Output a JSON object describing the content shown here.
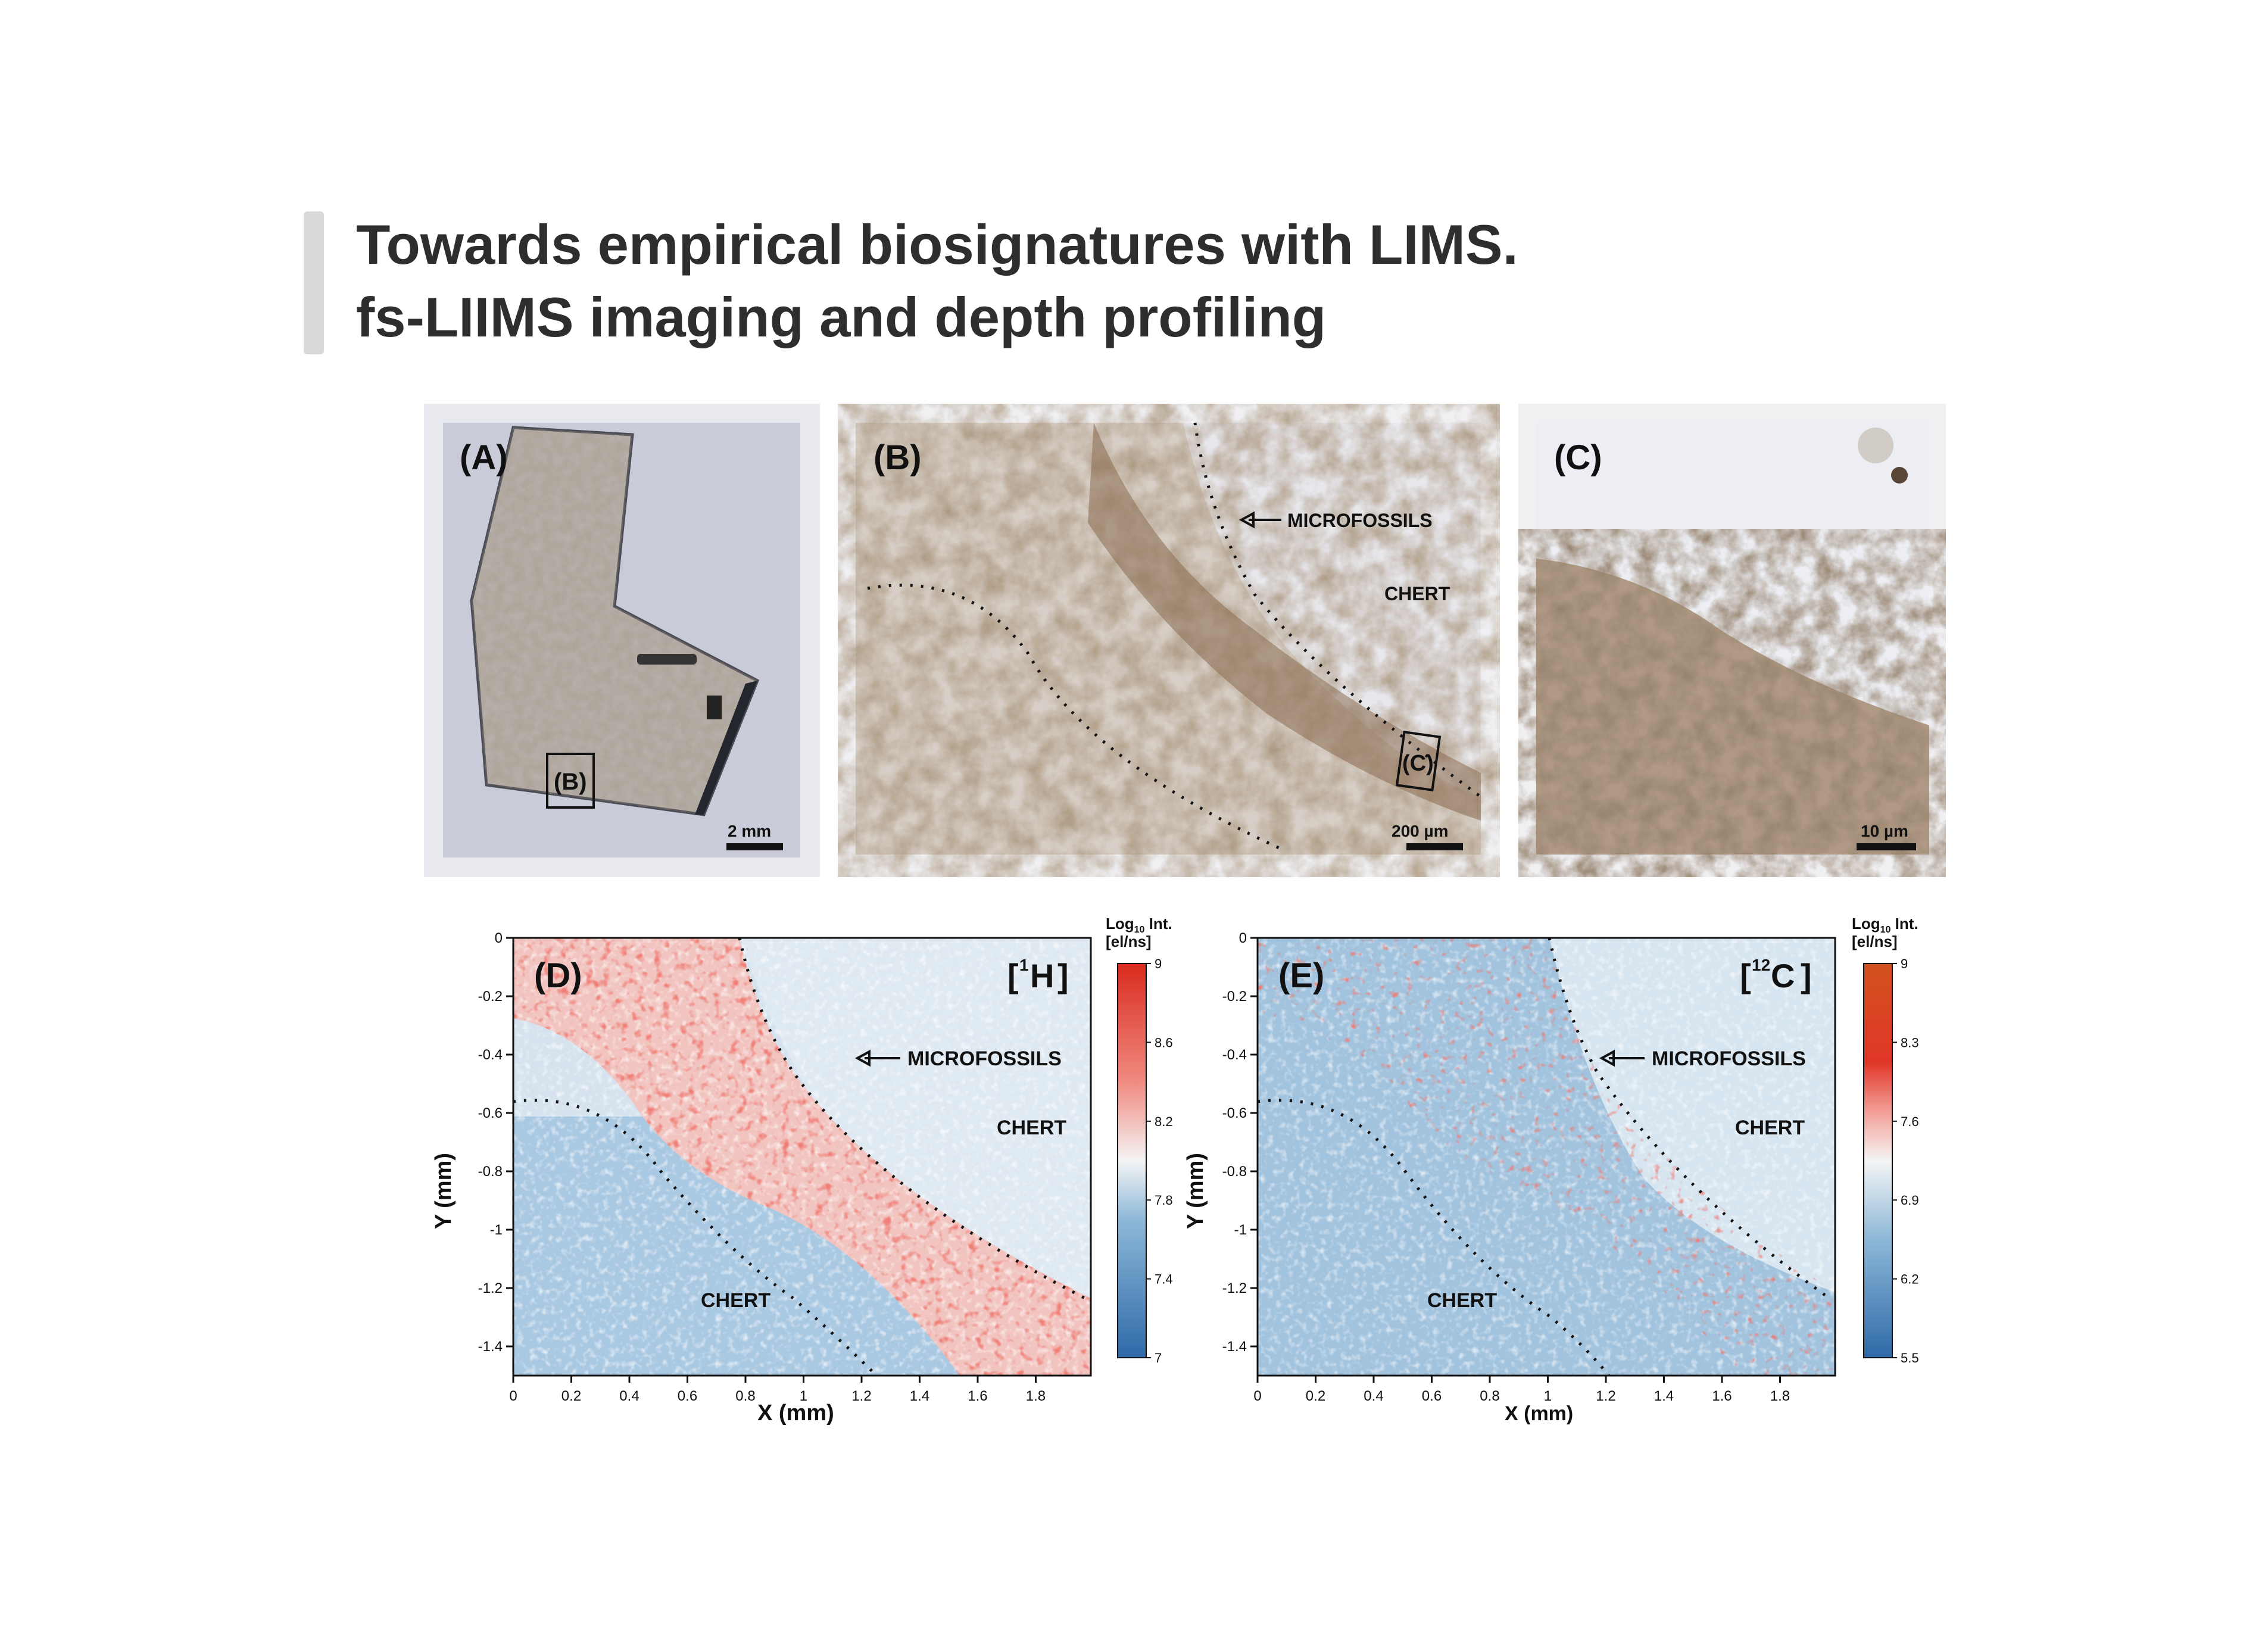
{
  "title": {
    "line1": "Towards empirical biosignatures with LIMS.",
    "line2": "fs-LIIMS imaging and depth profiling"
  },
  "panels": {
    "a": {
      "label": "(A)",
      "inset_label": "(B)",
      "scale": "2 mm"
    },
    "b": {
      "label": "(B)",
      "inset_label": "(C)",
      "microfossils": "MICROFOSSILS",
      "chert": "CHERT",
      "scale": "200 µm"
    },
    "c": {
      "label": "(C)",
      "scale": "10 µm"
    }
  },
  "maps": [
    {
      "label": "(D)",
      "isotope_mass": "1",
      "isotope_symbol": "H",
      "microfossils": "MICROFOSSILS",
      "chert_upper": "CHERT",
      "chert_lower": "CHERT",
      "xlabel": "X (mm)",
      "ylabel": "Y (mm)",
      "xticks": [
        "0",
        "0.2",
        "0.4",
        "0.6",
        "0.8",
        "1",
        "1.2",
        "1.4",
        "1.6",
        "1.8"
      ],
      "yticks": [
        "0",
        "-0.2",
        "-0.4",
        "-0.6",
        "-0.8",
        "-1",
        "-1.2",
        "-1.4"
      ],
      "colorbar_title1": "Log",
      "colorbar_sub": "10",
      "colorbar_title2": " Int.",
      "colorbar_unit": "[el/ns]",
      "colorbar_ticks": [
        "9",
        "8.6",
        "8.2",
        "7.8",
        "7.4",
        "7"
      ]
    },
    {
      "label": "(E)",
      "isotope_mass": "12",
      "isotope_symbol": "C",
      "microfossils": "MICROFOSSILS",
      "chert_upper": "CHERT",
      "chert_lower": "CHERT",
      "xlabel": "X (mm)",
      "ylabel": "Y (mm)",
      "xticks": [
        "0",
        "0.2",
        "0.4",
        "0.6",
        "0.8",
        "1",
        "1.2",
        "1.4",
        "1.6",
        "1.8"
      ],
      "yticks": [
        "0",
        "-0.2",
        "-0.4",
        "-0.6",
        "-0.8",
        "-1",
        "-1.2",
        "-1.4"
      ],
      "colorbar_title1": "Log",
      "colorbar_sub": "10",
      "colorbar_title2": " Int.",
      "colorbar_unit": "[el/ns]",
      "colorbar_ticks": [
        "9",
        "8.3",
        "7.6",
        "6.9",
        "6.2",
        "5.5"
      ]
    }
  ],
  "colors": {
    "hot": "#e0332b",
    "cold": "#3b76b0",
    "mid": "#f4f4f4",
    "title_bar": "#d9d9d9"
  }
}
